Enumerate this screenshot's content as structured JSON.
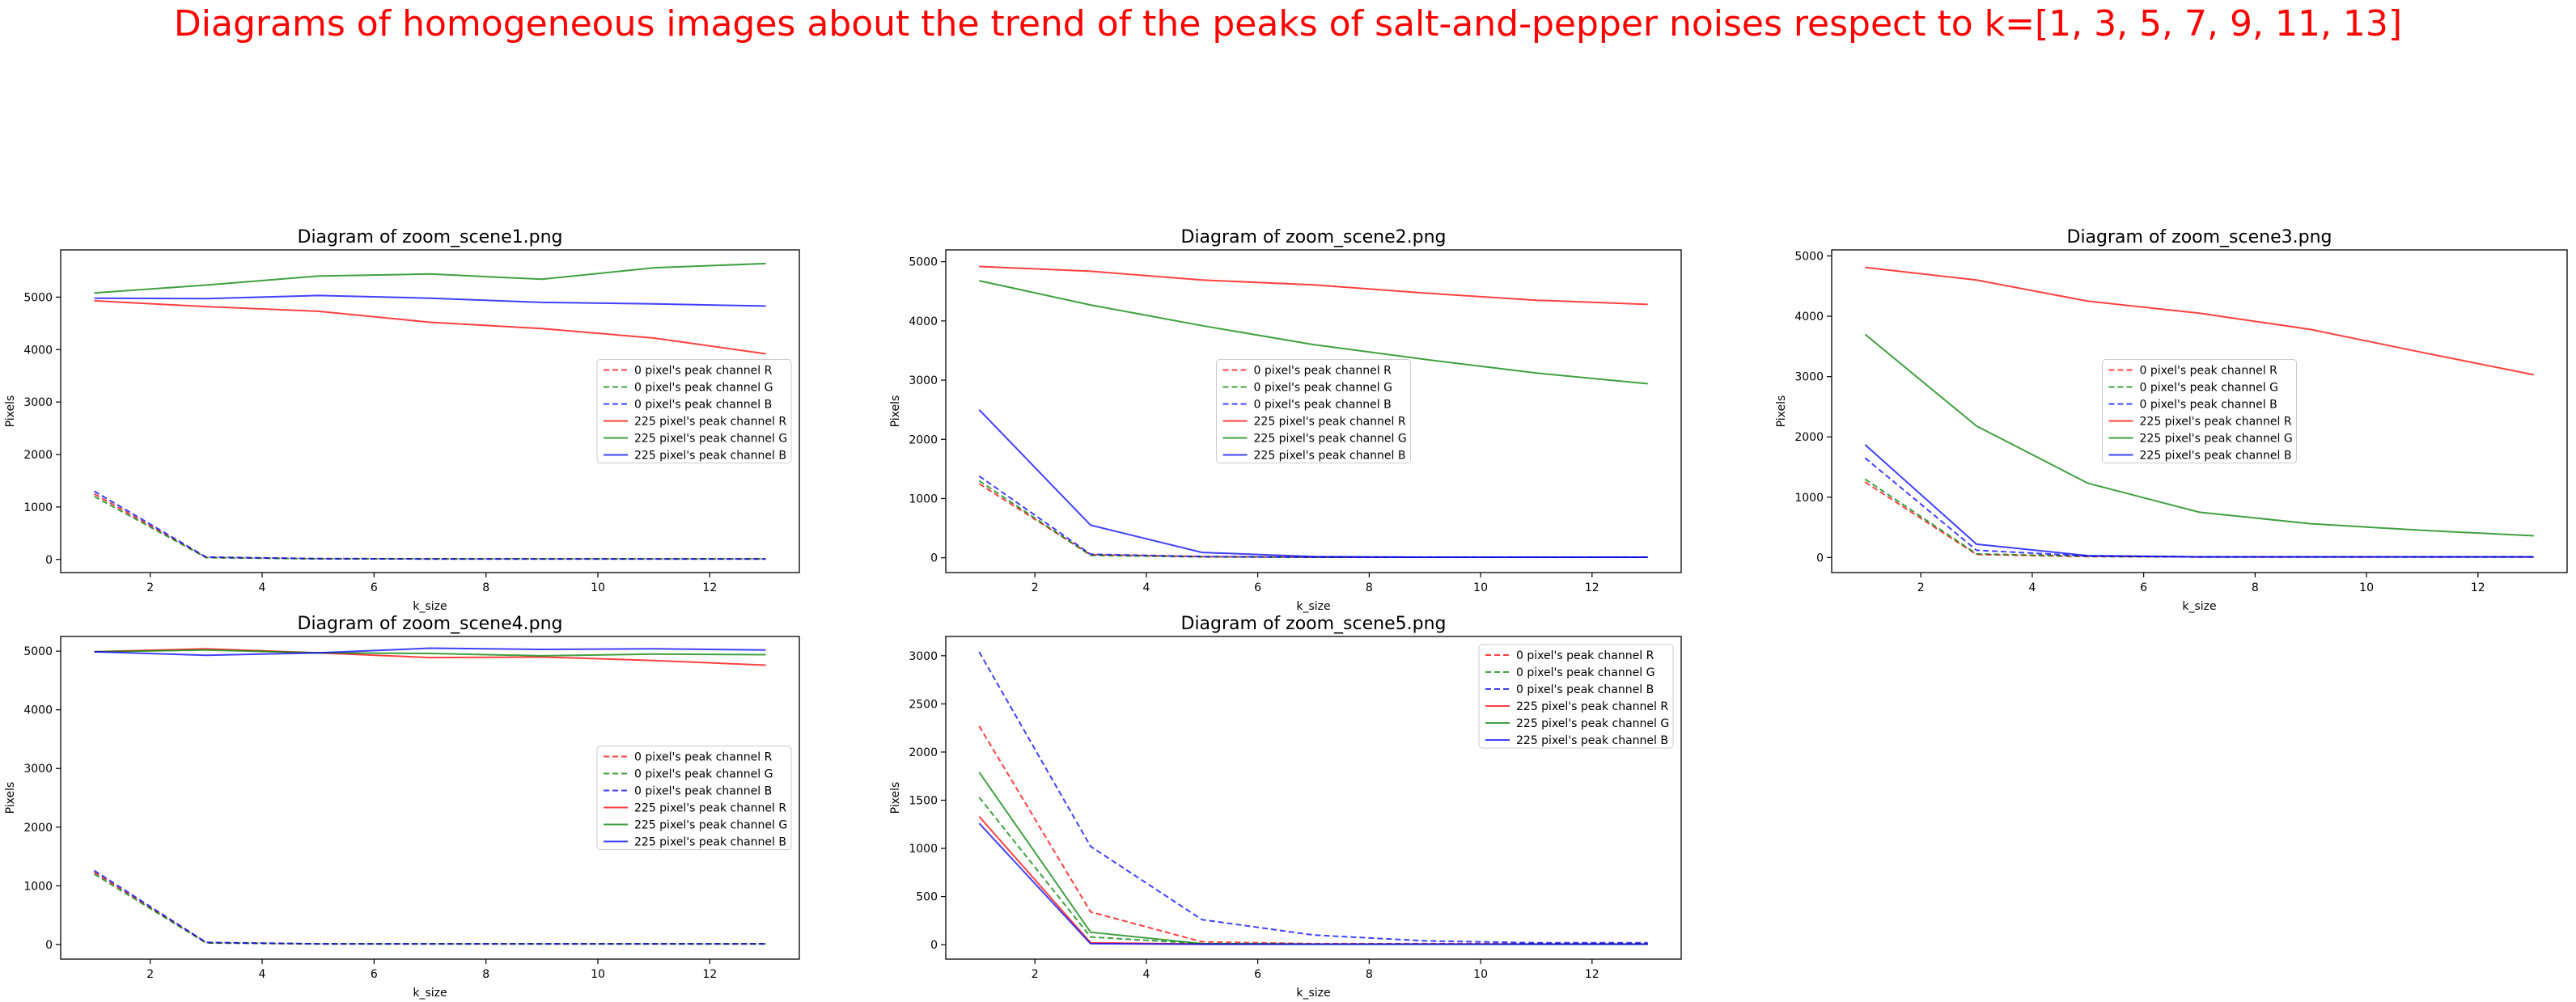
{
  "suptitle": "Diagrams of homogeneous images about the trend of the peaks of salt-and-pepper noises respect to k=[1, 3, 5, 7, 9, 11, 13]",
  "chart_data": [
    {
      "type": "line",
      "title": "Diagram of zoom_scene1.png",
      "xlabel": "k_size",
      "ylabel": "Pixels",
      "x": [
        1,
        3,
        5,
        7,
        9,
        11,
        13
      ],
      "xlim": [
        0.4,
        13.6
      ],
      "ylim": [
        -250,
        5900
      ],
      "xticks": [
        2,
        4,
        6,
        8,
        10,
        12
      ],
      "yticks": [
        0,
        1000,
        2000,
        3000,
        4000,
        5000
      ],
      "legend": "center-right",
      "series": [
        {
          "name": "0 pixel's peak channel R",
          "color": "#ff0000",
          "dash": true,
          "values": [
            1250,
            40,
            15,
            10,
            10,
            10,
            10
          ]
        },
        {
          "name": "0 pixel's peak channel G",
          "color": "#008000",
          "dash": true,
          "values": [
            1200,
            35,
            12,
            10,
            10,
            10,
            10
          ]
        },
        {
          "name": "0 pixel's peak channel B",
          "color": "#0000ff",
          "dash": true,
          "values": [
            1300,
            45,
            15,
            10,
            10,
            10,
            10
          ]
        },
        {
          "name": "225 pixel's peak channel R",
          "color": "#ff0000",
          "dash": false,
          "values": [
            4930,
            4820,
            4730,
            4520,
            4400,
            4220,
            3920
          ]
        },
        {
          "name": "225 pixel's peak channel G",
          "color": "#008000",
          "dash": false,
          "values": [
            5080,
            5230,
            5400,
            5440,
            5340,
            5560,
            5640
          ]
        },
        {
          "name": "225 pixel's peak channel B",
          "color": "#0000ff",
          "dash": false,
          "values": [
            4980,
            4970,
            5030,
            4980,
            4900,
            4870,
            4830
          ]
        }
      ]
    },
    {
      "type": "line",
      "title": "Diagram of zoom_scene2.png",
      "xlabel": "k_size",
      "ylabel": "Pixels",
      "x": [
        1,
        3,
        5,
        7,
        9,
        11,
        13
      ],
      "xlim": [
        0.4,
        13.6
      ],
      "ylim": [
        -250,
        5200
      ],
      "xticks": [
        2,
        4,
        6,
        8,
        10,
        12
      ],
      "yticks": [
        0,
        1000,
        2000,
        3000,
        4000,
        5000
      ],
      "legend": "center",
      "series": [
        {
          "name": "0 pixel's peak channel R",
          "color": "#ff0000",
          "dash": true,
          "values": [
            1250,
            50,
            20,
            10,
            10,
            10,
            10
          ]
        },
        {
          "name": "0 pixel's peak channel G",
          "color": "#008000",
          "dash": true,
          "values": [
            1300,
            40,
            15,
            10,
            10,
            10,
            10
          ]
        },
        {
          "name": "0 pixel's peak channel B",
          "color": "#0000ff",
          "dash": true,
          "values": [
            1380,
            60,
            20,
            10,
            10,
            10,
            10
          ]
        },
        {
          "name": "225 pixel's peak channel R",
          "color": "#ff0000",
          "dash": false,
          "values": [
            4920,
            4840,
            4690,
            4610,
            4470,
            4350,
            4280
          ]
        },
        {
          "name": "225 pixel's peak channel G",
          "color": "#008000",
          "dash": false,
          "values": [
            4680,
            4270,
            3920,
            3600,
            3350,
            3120,
            2940
          ]
        },
        {
          "name": "225 pixel's peak channel B",
          "color": "#0000ff",
          "dash": false,
          "values": [
            2500,
            550,
            90,
            20,
            10,
            10,
            10
          ]
        }
      ]
    },
    {
      "type": "line",
      "title": "Diagram of zoom_scene3.png",
      "xlabel": "k_size",
      "ylabel": "Pixels",
      "x": [
        1,
        3,
        5,
        7,
        9,
        11,
        13
      ],
      "xlim": [
        0.4,
        13.6
      ],
      "ylim": [
        -250,
        5100
      ],
      "xticks": [
        2,
        4,
        6,
        8,
        10,
        12
      ],
      "yticks": [
        0,
        1000,
        2000,
        3000,
        4000,
        5000
      ],
      "legend": "center",
      "series": [
        {
          "name": "0 pixel's peak channel R",
          "color": "#ff0000",
          "dash": true,
          "values": [
            1250,
            50,
            15,
            10,
            10,
            10,
            10
          ]
        },
        {
          "name": "0 pixel's peak channel G",
          "color": "#008000",
          "dash": true,
          "values": [
            1300,
            60,
            20,
            10,
            10,
            10,
            10
          ]
        },
        {
          "name": "0 pixel's peak channel B",
          "color": "#0000ff",
          "dash": true,
          "values": [
            1650,
            120,
            25,
            10,
            10,
            10,
            10
          ]
        },
        {
          "name": "225 pixel's peak channel R",
          "color": "#ff0000",
          "dash": false,
          "values": [
            4810,
            4600,
            4250,
            4050,
            3780,
            3400,
            3030
          ]
        },
        {
          "name": "225 pixel's peak channel G",
          "color": "#008000",
          "dash": false,
          "values": [
            3700,
            2180,
            1230,
            750,
            560,
            450,
            360
          ]
        },
        {
          "name": "225 pixel's peak channel B",
          "color": "#0000ff",
          "dash": false,
          "values": [
            1870,
            220,
            30,
            10,
            10,
            10,
            10
          ]
        }
      ]
    },
    {
      "type": "line",
      "title": "Diagram of zoom_scene4.png",
      "xlabel": "k_size",
      "ylabel": "Pixels",
      "x": [
        1,
        3,
        5,
        7,
        9,
        11,
        13
      ],
      "xlim": [
        0.4,
        13.6
      ],
      "ylim": [
        -250,
        5250
      ],
      "xticks": [
        2,
        4,
        6,
        8,
        10,
        12
      ],
      "yticks": [
        0,
        1000,
        2000,
        3000,
        4000,
        5000
      ],
      "legend": "center-right",
      "series": [
        {
          "name": "0 pixel's peak channel R",
          "color": "#ff0000",
          "dash": true,
          "values": [
            1230,
            30,
            10,
            10,
            10,
            10,
            10
          ]
        },
        {
          "name": "0 pixel's peak channel G",
          "color": "#008000",
          "dash": true,
          "values": [
            1200,
            25,
            10,
            10,
            10,
            10,
            10
          ]
        },
        {
          "name": "0 pixel's peak channel B",
          "color": "#0000ff",
          "dash": true,
          "values": [
            1260,
            35,
            10,
            10,
            10,
            10,
            10
          ]
        },
        {
          "name": "225 pixel's peak channel R",
          "color": "#ff0000",
          "dash": false,
          "values": [
            4990,
            5040,
            4970,
            4890,
            4900,
            4840,
            4760
          ]
        },
        {
          "name": "225 pixel's peak channel G",
          "color": "#008000",
          "dash": false,
          "values": [
            4990,
            5020,
            4970,
            4960,
            4920,
            4950,
            4940
          ]
        },
        {
          "name": "225 pixel's peak channel B",
          "color": "#0000ff",
          "dash": false,
          "values": [
            4990,
            4930,
            4970,
            5050,
            5030,
            5040,
            5020
          ]
        }
      ]
    },
    {
      "type": "line",
      "title": "Diagram of zoom_scene5.png",
      "xlabel": "k_size",
      "ylabel": "Pixels",
      "x": [
        1,
        3,
        5,
        7,
        9,
        11,
        13
      ],
      "xlim": [
        0.4,
        13.6
      ],
      "ylim": [
        -150,
        3200
      ],
      "xticks": [
        2,
        4,
        6,
        8,
        10,
        12
      ],
      "yticks": [
        0,
        500,
        1000,
        1500,
        2000,
        2500,
        3000
      ],
      "legend": "top-right",
      "series": [
        {
          "name": "0 pixel's peak channel R",
          "color": "#ff0000",
          "dash": true,
          "values": [
            2270,
            340,
            30,
            10,
            10,
            10,
            10
          ]
        },
        {
          "name": "0 pixel's peak channel G",
          "color": "#008000",
          "dash": true,
          "values": [
            1530,
            80,
            10,
            5,
            5,
            5,
            5
          ]
        },
        {
          "name": "0 pixel's peak channel B",
          "color": "#0000ff",
          "dash": true,
          "values": [
            3040,
            1020,
            260,
            100,
            40,
            20,
            20
          ]
        },
        {
          "name": "225 pixel's peak channel R",
          "color": "#ff0000",
          "dash": false,
          "values": [
            1330,
            20,
            5,
            5,
            5,
            5,
            5
          ]
        },
        {
          "name": "225 pixel's peak channel G",
          "color": "#008000",
          "dash": false,
          "values": [
            1790,
            130,
            10,
            5,
            5,
            5,
            5
          ]
        },
        {
          "name": "225 pixel's peak channel B",
          "color": "#0000ff",
          "dash": false,
          "values": [
            1260,
            10,
            5,
            5,
            5,
            5,
            5
          ]
        }
      ]
    }
  ]
}
